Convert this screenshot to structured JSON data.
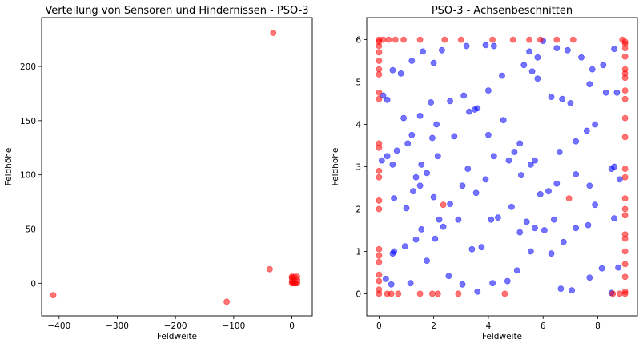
{
  "chart_data": [
    {
      "type": "scatter",
      "title": "Verteilung von Sensoren und Hindernissen - PSO-3",
      "xlabel": "Feldweite",
      "ylabel": "Feldhöhe",
      "xlim": [
        -430,
        35
      ],
      "ylim": [
        -30,
        245
      ],
      "xticks": [
        -400,
        -300,
        -200,
        -100,
        0
      ],
      "yticks": [
        0,
        50,
        100,
        150,
        200
      ],
      "xtick_labels": [
        "−400",
        "−300",
        "−200",
        "−100",
        "0"
      ],
      "ytick_labels": [
        "0",
        "50",
        "100",
        "150",
        "200"
      ],
      "grid": false,
      "series": [
        {
          "color": "#ff0000",
          "points": [
            [
              -410,
              -11
            ],
            [
              -112,
              -17
            ],
            [
              -32,
              231
            ],
            [
              -38,
              13
            ],
            [
              0,
              0
            ],
            [
              0,
              6
            ],
            [
              9,
              0
            ],
            [
              9,
              6
            ],
            [
              2,
              0
            ],
            [
              0,
              2
            ],
            [
              5,
              0
            ],
            [
              0,
              5
            ],
            [
              9,
              3
            ],
            [
              4,
              6
            ],
            [
              6,
              0
            ],
            [
              3,
              3
            ]
          ]
        }
      ]
    },
    {
      "type": "scatter",
      "title": "PSO-3 - Achsenbeschnitten",
      "xlabel": "Feldweite",
      "ylabel": "Feldhöhe",
      "xlim": [
        -0.45,
        9.45
      ],
      "ylim": [
        -0.52,
        6.52
      ],
      "xticks": [
        0,
        2,
        4,
        6,
        8
      ],
      "yticks": [
        0,
        1,
        2,
        3,
        4,
        5,
        6
      ],
      "xtick_labels": [
        "0",
        "2",
        "4",
        "6",
        "8"
      ],
      "ytick_labels": [
        "0",
        "1",
        "2",
        "3",
        "4",
        "5",
        "6"
      ],
      "grid": false,
      "series": [
        {
          "color": "#0000ff",
          "points": [
            [
              0.15,
              4.68
            ],
            [
              0.3,
              4.58
            ],
            [
              0.5,
              5.28
            ],
            [
              0.8,
              5.2
            ],
            [
              1.2,
              5.5
            ],
            [
              1.6,
              5.72
            ],
            [
              2.0,
              5.45
            ],
            [
              2.3,
              5.75
            ],
            [
              3.2,
              5.85
            ],
            [
              3.9,
              5.87
            ],
            [
              4.2,
              5.85
            ],
            [
              5.5,
              5.72
            ],
            [
              5.8,
              5.58
            ],
            [
              6.0,
              5.97
            ],
            [
              6.5,
              5.8
            ],
            [
              6.9,
              5.75
            ],
            [
              7.4,
              5.58
            ],
            [
              7.8,
              5.3
            ],
            [
              8.2,
              5.4
            ],
            [
              8.6,
              5.78
            ],
            [
              0.1,
              3.15
            ],
            [
              0.5,
              3.05
            ],
            [
              0.9,
              4.15
            ],
            [
              1.2,
              3.75
            ],
            [
              1.5,
              4.2
            ],
            [
              1.9,
              4.52
            ],
            [
              2.1,
              4.0
            ],
            [
              2.6,
              4.55
            ],
            [
              3.1,
              4.68
            ],
            [
              3.5,
              4.35
            ],
            [
              4.0,
              4.8
            ],
            [
              4.5,
              5.15
            ],
            [
              5.3,
              5.4
            ],
            [
              5.6,
              5.25
            ],
            [
              5.8,
              5.08
            ],
            [
              6.3,
              4.65
            ],
            [
              6.7,
              4.6
            ],
            [
              7.0,
              4.5
            ],
            [
              7.7,
              4.95
            ],
            [
              8.3,
              4.75
            ],
            [
              8.7,
              4.75
            ],
            [
              0.3,
              3.25
            ],
            [
              0.65,
              3.38
            ],
            [
              1.05,
              3.55
            ],
            [
              1.35,
              2.75
            ],
            [
              1.55,
              3.05
            ],
            [
              1.95,
              3.68
            ],
            [
              2.15,
              3.25
            ],
            [
              2.75,
              3.72
            ],
            [
              3.3,
              4.3
            ],
            [
              3.6,
              4.38
            ],
            [
              4.0,
              3.75
            ],
            [
              4.55,
              4.1
            ],
            [
              4.95,
              3.35
            ],
            [
              5.15,
              3.55
            ],
            [
              5.7,
              3.15
            ],
            [
              6.6,
              3.35
            ],
            [
              7.2,
              3.6
            ],
            [
              7.6,
              3.85
            ],
            [
              7.9,
              4.0
            ],
            [
              8.6,
              3.0
            ],
            [
              0.55,
              2.25
            ],
            [
              1.0,
              2.02
            ],
            [
              1.25,
              2.42
            ],
            [
              1.5,
              2.55
            ],
            [
              1.75,
              2.85
            ],
            [
              2.0,
              2.28
            ],
            [
              2.2,
              1.75
            ],
            [
              2.6,
              2.12
            ],
            [
              3.05,
              2.55
            ],
            [
              3.25,
              2.95
            ],
            [
              3.55,
              2.38
            ],
            [
              3.9,
              2.7
            ],
            [
              4.2,
              3.25
            ],
            [
              4.75,
              3.15
            ],
            [
              5.2,
              2.8
            ],
            [
              5.55,
              3.05
            ],
            [
              5.9,
              2.35
            ],
            [
              6.2,
              2.42
            ],
            [
              6.5,
              2.6
            ],
            [
              7.2,
              2.82
            ],
            [
              7.7,
              2.55
            ],
            [
              8.5,
              2.95
            ],
            [
              8.8,
              2.7
            ],
            [
              0.5,
              0.95
            ],
            [
              0.55,
              1.0
            ],
            [
              0.95,
              1.12
            ],
            [
              1.35,
              1.28
            ],
            [
              1.55,
              1.52
            ],
            [
              2.05,
              1.3
            ],
            [
              2.35,
              1.58
            ],
            [
              2.9,
              1.75
            ],
            [
              3.4,
              1.05
            ],
            [
              3.75,
              1.1
            ],
            [
              4.1,
              1.75
            ],
            [
              4.35,
              1.8
            ],
            [
              4.85,
              2.05
            ],
            [
              5.15,
              1.45
            ],
            [
              5.4,
              1.7
            ],
            [
              5.7,
              1.55
            ],
            [
              6.05,
              1.5
            ],
            [
              6.4,
              1.75
            ],
            [
              6.75,
              1.22
            ],
            [
              7.2,
              1.55
            ],
            [
              7.65,
              1.62
            ],
            [
              7.9,
              2.1
            ],
            [
              8.6,
              1.78
            ],
            [
              0.25,
              0.35
            ],
            [
              0.45,
              0.22
            ],
            [
              1.15,
              0.25
            ],
            [
              1.75,
              0.78
            ],
            [
              2.55,
              0.42
            ],
            [
              3.05,
              0.22
            ],
            [
              3.6,
              0.05
            ],
            [
              4.15,
              0.25
            ],
            [
              4.7,
              0.3
            ],
            [
              5.05,
              0.55
            ],
            [
              5.55,
              1.0
            ],
            [
              6.3,
              0.95
            ],
            [
              6.65,
              0.12
            ],
            [
              7.05,
              0.08
            ],
            [
              7.7,
              0.38
            ],
            [
              8.15,
              0.6
            ],
            [
              8.5,
              0.02
            ],
            [
              8.75,
              0.62
            ]
          ]
        },
        {
          "color": "#ff0000",
          "points": [
            [
              0,
              6
            ],
            [
              0.15,
              6
            ],
            [
              0.35,
              6
            ],
            [
              0.6,
              6
            ],
            [
              0.9,
              6
            ],
            [
              1.5,
              6
            ],
            [
              2.4,
              6
            ],
            [
              3.0,
              6
            ],
            [
              4.15,
              6
            ],
            [
              4.9,
              6
            ],
            [
              5.5,
              6
            ],
            [
              5.9,
              6
            ],
            [
              6.5,
              6
            ],
            [
              7.1,
              6
            ],
            [
              8.9,
              6
            ],
            [
              9.0,
              5.95
            ],
            [
              0,
              5.95
            ],
            [
              0,
              5.85
            ],
            [
              0,
              5.7
            ],
            [
              0,
              5.5
            ],
            [
              0,
              5.3
            ],
            [
              0,
              5.18
            ],
            [
              0,
              4.75
            ],
            [
              0,
              4.6
            ],
            [
              0,
              3.55
            ],
            [
              0,
              3.45
            ],
            [
              0,
              2.9
            ],
            [
              0,
              2.75
            ],
            [
              0,
              2.2
            ],
            [
              0,
              2.0
            ],
            [
              0,
              1.05
            ],
            [
              0,
              0.9
            ],
            [
              0,
              0.75
            ],
            [
              0,
              0.45
            ],
            [
              0,
              0.3
            ],
            [
              0,
              0.1
            ],
            [
              0,
              0
            ],
            [
              9,
              5.9
            ],
            [
              9,
              5.8
            ],
            [
              9,
              5.6
            ],
            [
              9,
              5.3
            ],
            [
              9,
              5.2
            ],
            [
              9,
              5.1
            ],
            [
              9,
              4.8
            ],
            [
              9,
              4.6
            ],
            [
              9,
              4.15
            ],
            [
              9,
              3.7
            ],
            [
              9,
              2.95
            ],
            [
              9,
              2.75
            ],
            [
              9,
              2.25
            ],
            [
              9,
              2.0
            ],
            [
              9,
              1.85
            ],
            [
              9,
              1.4
            ],
            [
              9,
              1.3
            ],
            [
              9,
              1.0
            ],
            [
              9,
              0.7
            ],
            [
              9,
              0.4
            ],
            [
              9,
              0.05
            ],
            [
              9,
              0
            ],
            [
              0.3,
              0
            ],
            [
              0.45,
              0
            ],
            [
              0.7,
              0
            ],
            [
              1.5,
              0
            ],
            [
              1.95,
              0
            ],
            [
              2.15,
              0
            ],
            [
              2.35,
              2.1
            ],
            [
              2.9,
              0
            ],
            [
              4.6,
              0
            ],
            [
              6.95,
              2.25
            ],
            [
              8.55,
              0
            ],
            [
              8.8,
              0
            ]
          ]
        }
      ]
    }
  ]
}
